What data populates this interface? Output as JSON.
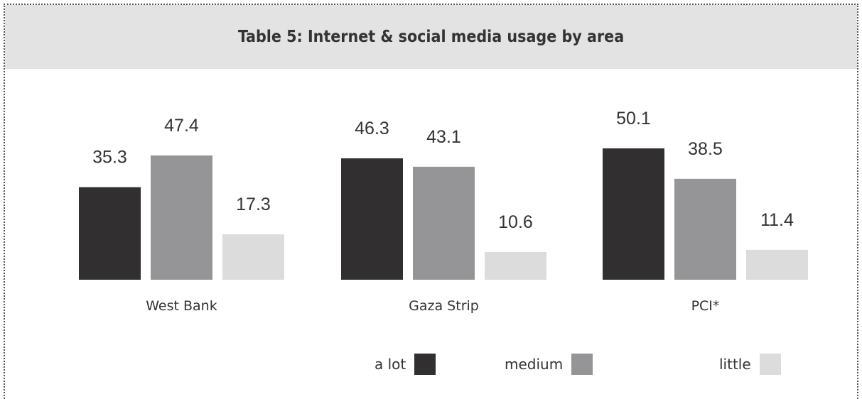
{
  "title": "Table 5: Internet & social media usage by area",
  "colors": {
    "a_lot": "#312f30",
    "medium": "#959597",
    "little": "#dcdcdd",
    "title_bg": "#e3e3e3"
  },
  "legend": [
    {
      "label": "a lot",
      "color_key": "a_lot"
    },
    {
      "label": "medium",
      "color_key": "medium"
    },
    {
      "label": "little",
      "color_key": "little"
    }
  ],
  "chart_data": {
    "type": "bar",
    "title": "Table 5: Internet & social media usage by area",
    "categories": [
      "West Bank",
      "Gaza Strip",
      "PCI*"
    ],
    "series": [
      {
        "name": "a lot",
        "values": [
          35.3,
          46.3,
          50.1
        ]
      },
      {
        "name": "medium",
        "values": [
          47.4,
          43.1,
          38.5
        ]
      },
      {
        "name": "little",
        "values": [
          17.3,
          10.6,
          11.4
        ]
      }
    ],
    "xlabel": "",
    "ylabel": "",
    "ylim": [
      0,
      50.1
    ],
    "grid": false,
    "legend_position": "bottom-right"
  }
}
